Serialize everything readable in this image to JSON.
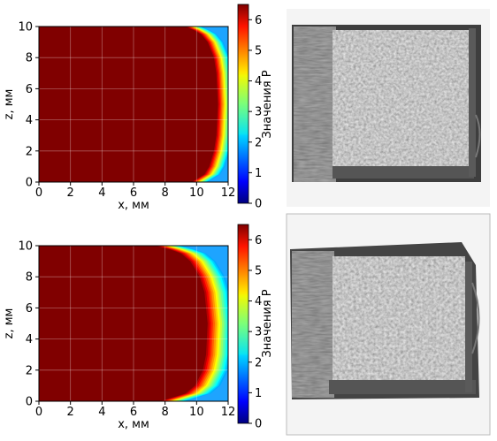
{
  "figure": {
    "panels": [
      {
        "xlabel": "x, мм",
        "ylabel": "z, мм",
        "colorbar_label": "Значения P",
        "x_ticks": [
          "0",
          "2",
          "4",
          "6",
          "8",
          "10",
          "12"
        ],
        "z_ticks": [
          "0",
          "2",
          "4",
          "6",
          "8",
          "10"
        ],
        "cb_ticks": [
          "0",
          "1",
          "2",
          "3",
          "4",
          "5",
          "6"
        ]
      },
      {
        "xlabel": "x, мм",
        "ylabel": "z, мм",
        "colorbar_label": "Значения P",
        "x_ticks": [
          "0",
          "2",
          "4",
          "6",
          "8",
          "10",
          "12"
        ],
        "z_ticks": [
          "0",
          "2",
          "4",
          "6",
          "8",
          "10"
        ],
        "cb_ticks": [
          "0",
          "1",
          "2",
          "3",
          "4",
          "5",
          "6"
        ]
      }
    ]
  },
  "chart_data": [
    {
      "type": "heatmap",
      "xlim": [
        0,
        12
      ],
      "ylim": [
        0,
        10
      ],
      "clim": [
        0,
        6.5
      ],
      "colormap": "jet",
      "grid": true,
      "description_values": {
        "saturated_value": 6.5,
        "boundary_x_at_z": [
          {
            "z": 0.0,
            "x": 9.7
          },
          {
            "z": 0.5,
            "x": 10.5
          },
          {
            "z": 1.0,
            "x": 10.8
          },
          {
            "z": 2.0,
            "x": 11.1
          },
          {
            "z": 3.0,
            "x": 11.25
          },
          {
            "z": 5.0,
            "x": 11.35
          },
          {
            "z": 7.0,
            "x": 11.25
          },
          {
            "z": 8.0,
            "x": 11.1
          },
          {
            "z": 9.0,
            "x": 10.7
          },
          {
            "z": 9.6,
            "x": 10.2
          },
          {
            "z": 10.0,
            "x": 9.3
          }
        ],
        "gradient_width_mm": 1.0,
        "far_value": 1.9
      }
    },
    {
      "type": "heatmap",
      "xlim": [
        0,
        12
      ],
      "ylim": [
        0,
        10
      ],
      "clim": [
        0,
        6.5
      ],
      "colormap": "jet",
      "grid": true,
      "description_values": {
        "saturated_value": 6.5,
        "boundary_x_at_z": [
          {
            "z": 0.0,
            "x": 7.7
          },
          {
            "z": 0.5,
            "x": 9.3
          },
          {
            "z": 1.0,
            "x": 9.9
          },
          {
            "z": 2.0,
            "x": 10.4
          },
          {
            "z": 3.0,
            "x": 10.6
          },
          {
            "z": 5.0,
            "x": 10.7
          },
          {
            "z": 7.0,
            "x": 10.5
          },
          {
            "z": 8.0,
            "x": 10.2
          },
          {
            "z": 9.0,
            "x": 9.6
          },
          {
            "z": 9.6,
            "x": 8.9
          },
          {
            "z": 10.0,
            "x": 7.4
          }
        ],
        "gradient_width_mm": 1.6,
        "far_value": 1.9
      }
    }
  ]
}
